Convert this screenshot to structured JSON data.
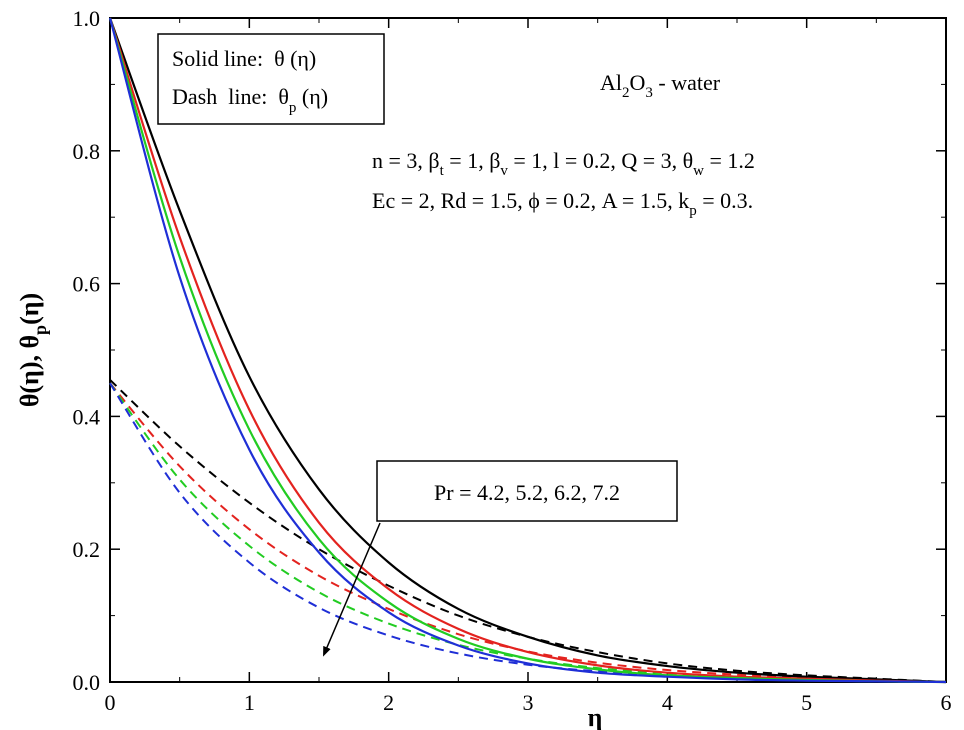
{
  "chart_data": {
    "type": "line",
    "xlabel": "η",
    "ylabel": "θ(η), θp(η)",
    "xlim": [
      0,
      6
    ],
    "ylim": [
      0,
      1
    ],
    "x_ticks": [
      "0",
      "1",
      "2",
      "3",
      "4",
      "5",
      "6"
    ],
    "y_ticks": [
      "0.0",
      "0.2",
      "0.4",
      "0.6",
      "0.8",
      "1.0"
    ],
    "grid": false,
    "colors": [
      "#000000",
      "#e3231f",
      "#22cc22",
      "#1f2fd6"
    ],
    "x": [
      0,
      0.5,
      1,
      1.5,
      2,
      2.5,
      3,
      3.5,
      4,
      4.5,
      5,
      5.5,
      6
    ],
    "solid_series": [
      {
        "name": "Pr = 4.2",
        "color": "#000000",
        "values": [
          1.0,
          0.71,
          0.46,
          0.29,
          0.18,
          0.11,
          0.068,
          0.04,
          0.024,
          0.014,
          0.008,
          0.004,
          0.0
        ]
      },
      {
        "name": "Pr = 5.2",
        "color": "#e3231f",
        "values": [
          1.0,
          0.67,
          0.41,
          0.24,
          0.14,
          0.08,
          0.045,
          0.025,
          0.014,
          0.008,
          0.005,
          0.002,
          0.0
        ]
      },
      {
        "name": "Pr = 6.2",
        "color": "#22cc22",
        "values": [
          1.0,
          0.64,
          0.38,
          0.215,
          0.12,
          0.065,
          0.035,
          0.019,
          0.01,
          0.006,
          0.003,
          0.001,
          0.0
        ]
      },
      {
        "name": "Pr = 7.2",
        "color": "#1f2fd6",
        "values": [
          1.0,
          0.61,
          0.35,
          0.195,
          0.105,
          0.055,
          0.028,
          0.014,
          0.008,
          0.004,
          0.002,
          0.001,
          0.0
        ]
      }
    ],
    "dash_series": [
      {
        "name": "Pr = 4.2",
        "color": "#000000",
        "values": [
          0.455,
          0.355,
          0.27,
          0.2,
          0.145,
          0.1,
          0.068,
          0.045,
          0.028,
          0.017,
          0.01,
          0.005,
          0.0
        ]
      },
      {
        "name": "Pr = 5.2",
        "color": "#e3231f",
        "values": [
          0.45,
          0.325,
          0.23,
          0.16,
          0.11,
          0.072,
          0.046,
          0.029,
          0.018,
          0.011,
          0.006,
          0.003,
          0.0
        ]
      },
      {
        "name": "Pr = 6.2",
        "color": "#22cc22",
        "values": [
          0.45,
          0.305,
          0.205,
          0.135,
          0.088,
          0.056,
          0.035,
          0.021,
          0.013,
          0.008,
          0.004,
          0.002,
          0.0
        ]
      },
      {
        "name": "Pr = 7.2",
        "color": "#1f2fd6",
        "values": [
          0.45,
          0.285,
          0.18,
          0.112,
          0.07,
          0.043,
          0.026,
          0.016,
          0.009,
          0.005,
          0.003,
          0.001,
          0.0
        ]
      }
    ],
    "legend_box": {
      "solid_prefix": "Solid line:  ",
      "solid_symbol": "θ (η)",
      "dash_prefix": "Dash  line:  ",
      "dash_main": "θ",
      "dash_sub": "p",
      "dash_tail": " (η)"
    },
    "fluid_label": {
      "a": "Al",
      "s1": "2",
      "b": "O",
      "s2": "3",
      "c": " - water"
    },
    "params_line1": [
      {
        "t": "n = 3, β"
      },
      {
        "t": "t",
        "sub": true
      },
      {
        "t": " = 1, β"
      },
      {
        "t": "v",
        "sub": true
      },
      {
        "t": " = 1, l = 0.2, Q = 3, θ"
      },
      {
        "t": "w",
        "sub": true
      },
      {
        "t": " = 1.2"
      }
    ],
    "params_line2": [
      {
        "t": "Ec = 2, Rd = 1.5, ϕ = 0.2, A = 1.5, k"
      },
      {
        "t": "p",
        "sub": true
      },
      {
        "t": " = 0.3."
      }
    ],
    "pr_label": "Pr = 4.2, 5.2, 6.2, 7.2"
  }
}
